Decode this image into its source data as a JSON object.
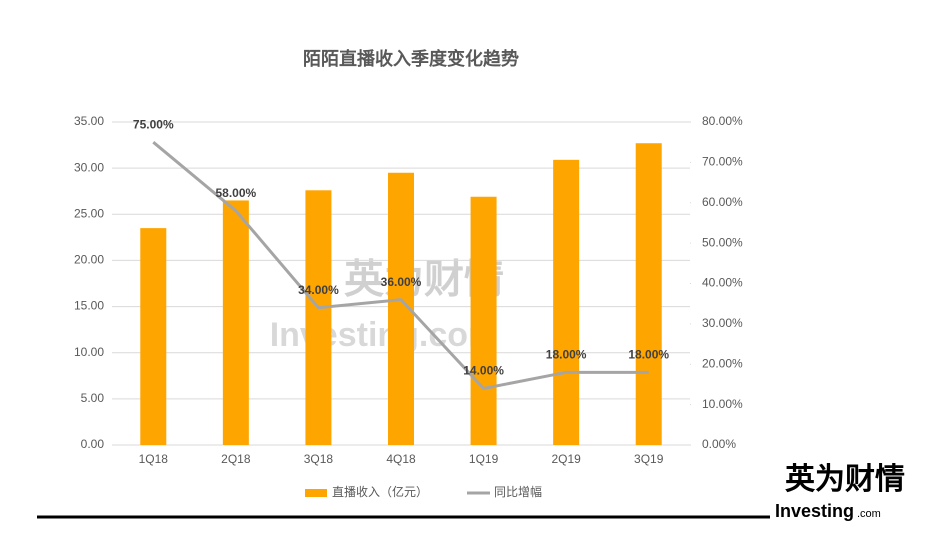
{
  "chart_data": {
    "type": "combo",
    "title": "陌陌直播收入季度变化趋势",
    "categories": [
      "1Q18",
      "2Q18",
      "3Q18",
      "4Q18",
      "1Q19",
      "2Q19",
      "3Q19"
    ],
    "series": [
      {
        "name": "直播收入（亿元）",
        "type": "bar",
        "color": "#ffa500",
        "values": [
          23.5,
          26.5,
          27.6,
          29.5,
          26.9,
          30.9,
          32.7
        ]
      },
      {
        "name": "同比增幅",
        "type": "line",
        "axis": "y2",
        "color": "#a5a5a5",
        "values": [
          75,
          58,
          34,
          36,
          14,
          18,
          18
        ],
        "value_labels": [
          "75.00%",
          "58.00%",
          "34.00%",
          "36.00%",
          "14.00%",
          "18.00%",
          "18.00%"
        ]
      }
    ],
    "ylim": [
      0,
      35
    ],
    "yticks": [
      {
        "value": 0,
        "label": "0.00"
      },
      {
        "value": 5,
        "label": "5.00"
      },
      {
        "value": 10,
        "label": "10.00"
      },
      {
        "value": 15,
        "label": "15.00"
      },
      {
        "value": 20,
        "label": "20.00"
      },
      {
        "value": 25,
        "label": "25.00"
      },
      {
        "value": 30,
        "label": "30.00"
      },
      {
        "value": 35,
        "label": "35.00"
      }
    ],
    "y2lim": [
      0,
      80
    ],
    "y2ticks": [
      {
        "value": 0,
        "label": "0.00%"
      },
      {
        "value": 10,
        "label": "10.00%"
      },
      {
        "value": 20,
        "label": "20.00%"
      },
      {
        "value": 30,
        "label": "30.00%"
      },
      {
        "value": 40,
        "label": "40.00%"
      },
      {
        "value": 50,
        "label": "50.00%"
      },
      {
        "value": 60,
        "label": "60.00%"
      },
      {
        "value": 70,
        "label": "70.00%"
      },
      {
        "value": 80,
        "label": "80.00%"
      }
    ],
    "grid": true,
    "legend": "bottom",
    "watermark": {
      "cn": "英为财情",
      "en": "Investing.com"
    },
    "logo": {
      "cn": "英为财情",
      "en": "Investing",
      "suffix": ".com"
    }
  }
}
